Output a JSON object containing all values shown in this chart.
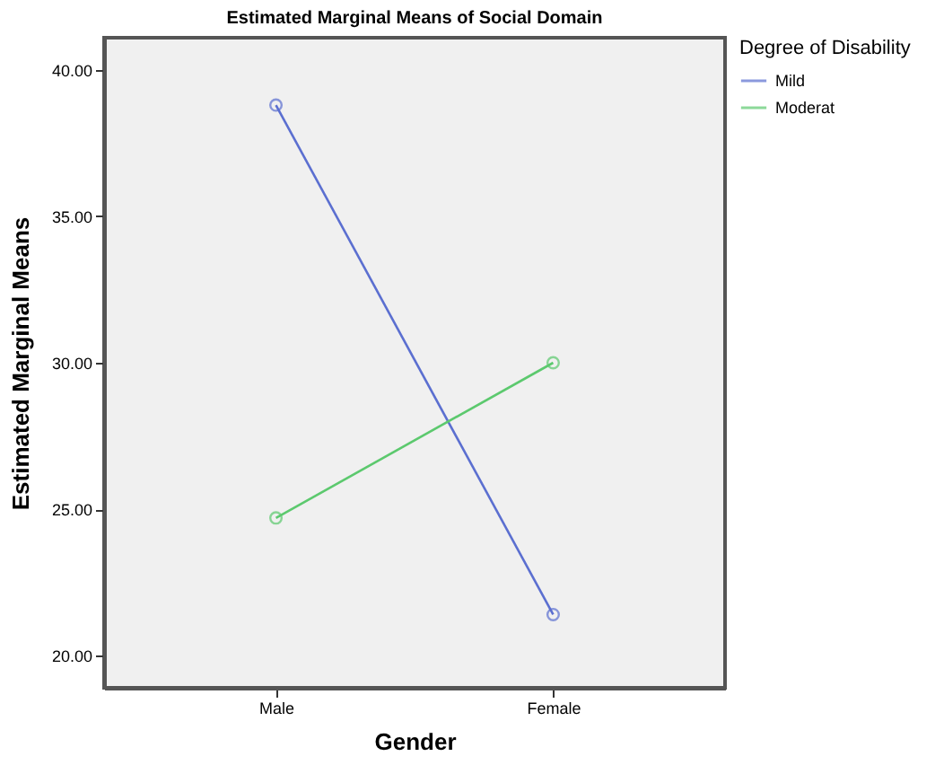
{
  "chart_data": {
    "type": "line",
    "title": "Estimated Marginal Means of Social Domain",
    "xlabel": "Gender",
    "ylabel": "Estimated Marginal Means",
    "legend_title": "Degree of Disability",
    "categories": [
      "Male",
      "Female"
    ],
    "series": [
      {
        "name": "Mild",
        "color": "#5b6fd0",
        "values": [
          38.8,
          21.4
        ]
      },
      {
        "name": "Moderat",
        "color": "#5cc96e",
        "values": [
          24.7,
          30.0
        ]
      }
    ],
    "ylim": [
      18.9,
      41.1
    ],
    "yticks": [
      {
        "value": 20,
        "label": "20.00"
      },
      {
        "value": 25,
        "label": "25.00"
      },
      {
        "value": 30,
        "label": "30.00"
      },
      {
        "value": 35,
        "label": "35.00"
      },
      {
        "value": 40,
        "label": "40.00"
      }
    ],
    "grid": false,
    "legend": "top right",
    "marker": "circle",
    "line_style": "solid"
  }
}
